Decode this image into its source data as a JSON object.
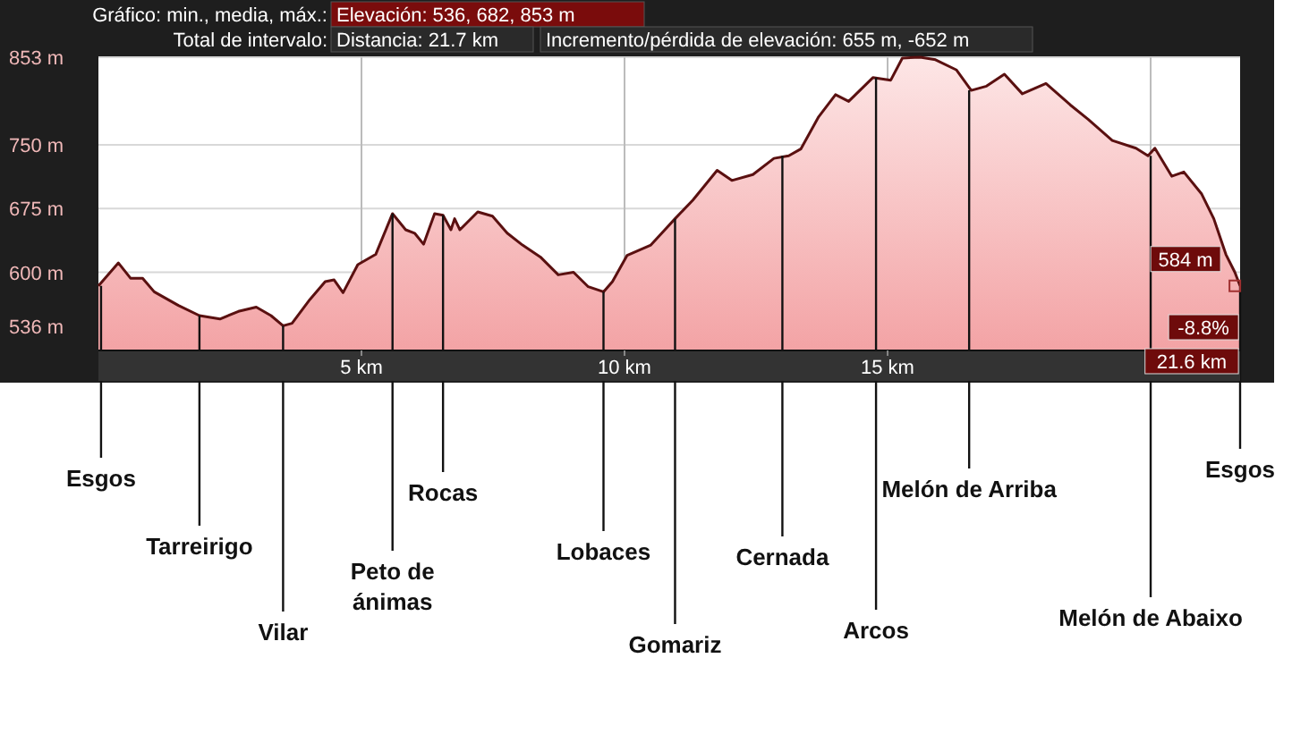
{
  "chart_data": {
    "type": "area",
    "x": [
      0,
      0.38,
      0.61,
      0.84,
      1.06,
      1.52,
      1.92,
      2.31,
      2.66,
      3.0,
      3.28,
      3.51,
      3.68,
      4.02,
      4.31,
      4.48,
      4.65,
      4.93,
      5.27,
      5.59,
      5.84,
      6.01,
      6.18,
      6.39,
      6.55,
      6.7,
      6.77,
      6.87,
      7.21,
      7.49,
      7.77,
      8.06,
      8.4,
      8.74,
      9.03,
      9.31,
      9.6,
      9.77,
      10.05,
      10.5,
      10.96,
      11.3,
      11.76,
      12.04,
      12.44,
      12.84,
      13.12,
      13.35,
      13.69,
      14.01,
      14.26,
      14.72,
      15.06,
      15.28,
      15.62,
      15.91,
      16.31,
      16.59,
      16.88,
      17.22,
      17.56,
      18.01,
      18.47,
      18.81,
      19.27,
      19.72,
      19.95,
      20.08,
      20.4,
      20.63,
      20.97,
      21.2,
      21.43,
      21.6,
      21.7
    ],
    "series": [
      {
        "color": "#5a1010",
        "values": [
          584,
          611,
          593,
          593,
          577,
          561,
          549,
          545,
          554,
          559,
          549,
          537,
          540,
          568,
          589,
          591,
          576,
          609,
          621,
          669,
          650,
          646,
          633,
          669,
          667,
          650,
          663,
          650,
          671,
          666,
          646,
          632,
          618,
          597,
          600,
          583,
          577,
          589,
          620,
          632,
          663,
          685,
          720,
          708,
          715,
          734,
          737,
          745,
          783,
          809,
          801,
          829,
          826,
          852,
          853,
          850,
          838,
          814,
          819,
          833,
          810,
          822,
          797,
          780,
          755,
          746,
          737,
          746,
          713,
          718,
          692,
          663,
          621,
          600,
          584
        ]
      }
    ],
    "xlim": [
      0,
      21.7
    ],
    "ylim": [
      508,
      853
    ],
    "yticks": [
      {
        "value": 536,
        "label": "536 m"
      },
      {
        "value": 600,
        "label": "600 m"
      },
      {
        "value": 675,
        "label": "675 m"
      },
      {
        "value": 750,
        "label": "750 m"
      },
      {
        "value": 853,
        "label": "853 m"
      }
    ],
    "xticks": [
      {
        "value": 5,
        "label": "5 km"
      },
      {
        "value": 10,
        "label": "10 km"
      },
      {
        "value": 15,
        "label": "15 km"
      },
      {
        "value": 20,
        "label": null
      }
    ],
    "grid": true,
    "annotations": [
      "Gráfico: min., media, máx.:",
      "Elevación: 536, 682, 853 m",
      "Total de intervalo:",
      "Distancia: 21.7 km",
      "Incremento/pérdida de elevación: 655 m, -652 m",
      {
        "text": "Esgos",
        "x": 0.05,
        "y": 584
      },
      {
        "text": "Tarreirigo",
        "x": 1.92,
        "y": 549
      },
      {
        "text": "Vilar",
        "x": 3.51,
        "y": 537
      },
      {
        "text": "Peto de\nánimas",
        "x": 5.59,
        "y": 669
      },
      {
        "text": "Rocas",
        "x": 6.55,
        "y": 667
      },
      {
        "text": "Lobaces",
        "x": 9.6,
        "y": 577
      },
      {
        "text": "Gomariz",
        "x": 10.96,
        "y": 663
      },
      {
        "text": "Cernada",
        "x": 13.0,
        "y": 737
      },
      {
        "text": "Arcos",
        "x": 14.78,
        "y": 829
      },
      {
        "text": "Melón de Arriba",
        "x": 16.55,
        "y": 814
      },
      {
        "text": "Melón de Abaixo",
        "x": 20.0,
        "y": 737
      },
      {
        "text": "Esgos",
        "x": 21.7,
        "y": 584
      },
      {
        "text": "584 m",
        "x": 21.6,
        "y": 584
      },
      "-8.8%",
      "21.6 km"
    ]
  }
}
